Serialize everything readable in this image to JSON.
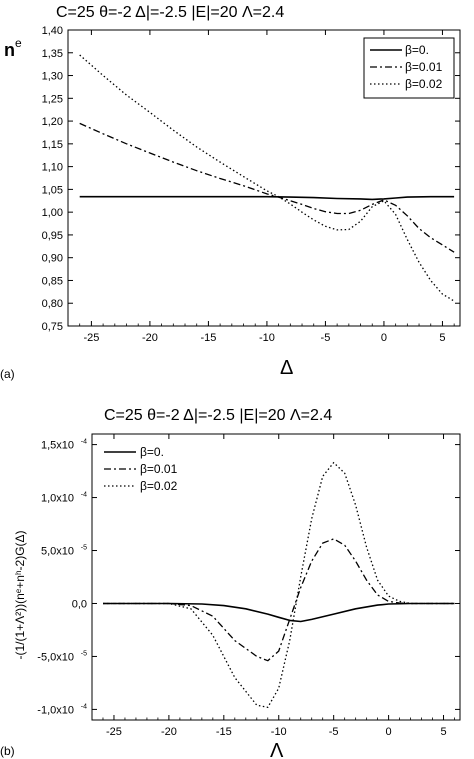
{
  "chart_data": [
    {
      "type": "line",
      "panel_label": "(a)",
      "title": "C=25     θ=-2    Δ|=-2.5    |E|=20   Λ=2.4",
      "xlabel": "Δ",
      "ylabel_main": "n",
      "ylabel_sup": "e",
      "xlim": [
        -27,
        6.5
      ],
      "ylim": [
        0.75,
        1.4
      ],
      "xticks": [
        -25,
        -20,
        -15,
        -10,
        -5,
        0,
        5
      ],
      "xtick_labels": [
        "-25",
        "-20",
        "-15",
        "-10",
        "-5",
        "0",
        "5"
      ],
      "yticks": [
        0.75,
        0.8,
        0.85,
        0.9,
        0.95,
        1.0,
        1.05,
        1.1,
        1.15,
        1.2,
        1.25,
        1.3,
        1.35,
        1.4
      ],
      "ytick_labels": [
        "0,75",
        "0,80",
        "0,85",
        "0,90",
        "0,95",
        "1,00",
        "1,05",
        "1,10",
        "1,15",
        "1,20",
        "1,25",
        "1,30",
        "1,35",
        "1,40"
      ],
      "legend_position": "top-right",
      "series": [
        {
          "name": "β=0.",
          "dash": "solid",
          "x": [
            -26,
            -20,
            -15,
            -10,
            -8,
            -6,
            -4,
            -2,
            -1,
            0,
            1,
            2,
            4,
            6
          ],
          "y": [
            1.034,
            1.034,
            1.034,
            1.034,
            1.033,
            1.032,
            1.03,
            1.029,
            1.028,
            1.029,
            1.031,
            1.033,
            1.034,
            1.034
          ]
        },
        {
          "name": "β=0.01",
          "dash": "dashdot",
          "x": [
            -26,
            -24,
            -22,
            -20,
            -18,
            -16,
            -14,
            -12,
            -10,
            -9,
            -8,
            -7,
            -6,
            -5,
            -4,
            -3,
            -2,
            -1,
            0,
            1,
            2,
            3,
            4,
            5,
            6
          ],
          "y": [
            1.195,
            1.172,
            1.15,
            1.13,
            1.11,
            1.091,
            1.074,
            1.058,
            1.04,
            1.033,
            1.025,
            1.017,
            1.008,
            1.001,
            0.997,
            0.997,
            1.004,
            1.017,
            1.027,
            1.015,
            0.992,
            0.964,
            0.944,
            0.928,
            0.912
          ]
        },
        {
          "name": "β=0.02",
          "dash": "dotted",
          "x": [
            -26,
            -24,
            -22,
            -20,
            -18,
            -16,
            -14,
            -12,
            -10,
            -9,
            -8,
            -7,
            -6,
            -5,
            -4,
            -3,
            -2,
            -1,
            0,
            1,
            2,
            3,
            4,
            5,
            6
          ],
          "y": [
            1.345,
            1.3,
            1.257,
            1.219,
            1.18,
            1.143,
            1.11,
            1.078,
            1.047,
            1.034,
            1.018,
            1.0,
            0.983,
            0.969,
            0.961,
            0.962,
            0.98,
            1.012,
            1.025,
            0.995,
            0.94,
            0.89,
            0.85,
            0.82,
            0.805
          ]
        }
      ]
    },
    {
      "type": "line",
      "panel_label": "(b)",
      "title": "C=25     θ=-2    Δ|=-2.5    |E|=20   Λ=2.4",
      "xlabel": "Λ",
      "ylabel": "-(1/(1+Λ²))(nᵉ+nʰ-2)G(Δ)",
      "xlim": [
        -27,
        6.5
      ],
      "ylim": [
        -0.00011,
        0.00016
      ],
      "xticks": [
        -25,
        -20,
        -15,
        -10,
        -5,
        0,
        5
      ],
      "xtick_labels": [
        "-25",
        "-20",
        "-15",
        "-10",
        "-5",
        "0",
        "5"
      ],
      "yticks": [
        -0.0001,
        -5e-05,
        0,
        5e-05,
        0.0001,
        0.00015
      ],
      "ytick_labels": [
        "-1,0x10",
        "-5,0x10",
        "0,0",
        "5,0x10",
        "1,0x10",
        "1,5x10"
      ],
      "ytick_exponents": [
        "-4",
        "-5",
        "",
        "-5",
        "-4",
        "-4"
      ],
      "legend_position": "top-left",
      "series": [
        {
          "name": "β=0.",
          "dash": "solid",
          "x": [
            -26,
            -20,
            -17,
            -15,
            -13,
            -11,
            -10,
            -9,
            -8,
            -7,
            -5,
            -3,
            -1,
            0,
            2,
            4,
            6
          ],
          "y": [
            0,
            0,
            -5e-07,
            -2e-06,
            -5e-06,
            -1e-05,
            -1.3e-05,
            -1.6e-05,
            -1.7e-05,
            -1.5e-05,
            -1e-05,
            -5e-06,
            -1.5e-06,
            -5e-07,
            0,
            0,
            0
          ]
        },
        {
          "name": "β=0.01",
          "dash": "dashdot",
          "x": [
            -26,
            -20,
            -18,
            -16,
            -14,
            -12,
            -11,
            -10,
            -9,
            -8,
            -7,
            -6,
            -5,
            -4,
            -3,
            -2,
            -1,
            0,
            1,
            2,
            4,
            6
          ],
          "y": [
            0,
            0,
            -2e-06,
            -1.2e-05,
            -3.5e-05,
            -5e-05,
            -5.4e-05,
            -4.5e-05,
            -1.5e-05,
            1.5e-05,
            4e-05,
            5.7e-05,
            6.1e-05,
            5.5e-05,
            4e-05,
            2.2e-05,
            8e-06,
            2e-06,
            5e-07,
            0,
            0,
            0
          ]
        },
        {
          "name": "β=0.02",
          "dash": "dotted",
          "x": [
            -26,
            -20,
            -18,
            -16,
            -14,
            -12,
            -11,
            -10,
            -9,
            -8,
            -7,
            -6,
            -5,
            -4,
            -3,
            -2,
            -1,
            0,
            1,
            2,
            4,
            6
          ],
          "y": [
            0,
            0,
            -5e-06,
            -3e-05,
            -7e-05,
            -9.6e-05,
            -9.8e-05,
            -8e-05,
            -3.5e-05,
            2.5e-05,
            8e-05,
            0.00012,
            0.000133,
            0.000123,
            9.3e-05,
            5.3e-05,
            2.2e-05,
            7e-06,
            2e-06,
            0,
            0,
            0
          ]
        }
      ]
    }
  ]
}
